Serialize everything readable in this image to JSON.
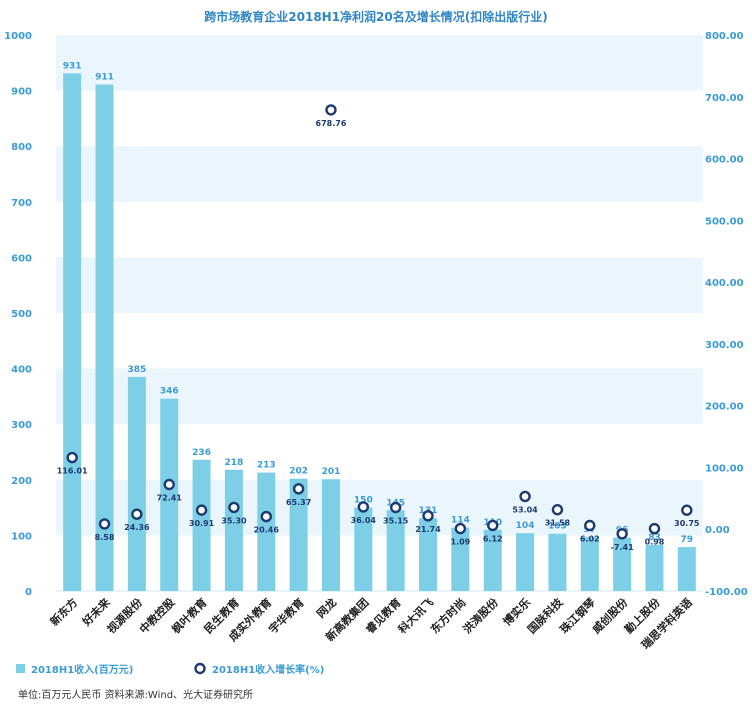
{
  "chart_data": {
    "type": "bar",
    "title": "跨市场教育企业2018H1净利润20名及增长情况(扣除出版行业)",
    "categories": [
      "新东方",
      "好未来",
      "视源股份",
      "中教控股",
      "枫叶教育",
      "民生教育",
      "成实外教育",
      "宇华教育",
      "网龙",
      "新高教集团",
      "睿见教育",
      "科大讯飞",
      "东方时尚",
      "洪涛股份",
      "博实乐",
      "国脉科技",
      "珠江钢琴",
      "威创股份",
      "勤上股份",
      "瑞思学科英语"
    ],
    "series": [
      {
        "name": "2018H1收入(百万元)",
        "type": "bar",
        "axis": "left",
        "values": [
          931,
          911,
          385,
          346,
          236,
          218,
          213,
          202,
          201,
          150,
          145,
          131,
          114,
          110,
          104,
          103,
          97,
          96,
          83,
          79
        ],
        "color": "#7dcfe8"
      },
      {
        "name": "2018H1收入增长率(%)",
        "type": "scatter",
        "axis": "right",
        "values": [
          116.01,
          8.58,
          24.36,
          72.41,
          30.91,
          35.3,
          20.46,
          65.37,
          678.76,
          36.04,
          35.15,
          21.74,
          1.09,
          6.12,
          53.04,
          31.58,
          6.02,
          -7.41,
          0.98,
          30.75
        ],
        "labels": [
          "116.01",
          "8.58",
          "24.36",
          "72.41",
          "30.91",
          "35.30",
          "20.46",
          "65.37",
          "678.76",
          "36.04",
          "35.15",
          "21.74",
          "1.09",
          "6.12",
          "53.04",
          "31.58",
          "6.02",
          "-7.41",
          "0.98",
          "30.75"
        ],
        "color": "#1e3a6e"
      }
    ],
    "yleft": {
      "ylim": [
        0,
        1000
      ],
      "ticks": [
        "0",
        "100",
        "200",
        "300",
        "400",
        "500",
        "600",
        "700",
        "800",
        "900",
        "1000"
      ]
    },
    "yright": {
      "ylim": [
        -100,
        800
      ],
      "ticks": [
        "-100.00",
        "0.00",
        "100.00",
        "200.00",
        "300.00",
        "400.00",
        "500.00",
        "600.00",
        "700.00",
        "800.00"
      ]
    },
    "legend_position": "bottom-left",
    "grid": "alternating horizontal bands"
  },
  "footer_note": "单位:百万元人民币  资料来源:Wind、光大证券研究所"
}
